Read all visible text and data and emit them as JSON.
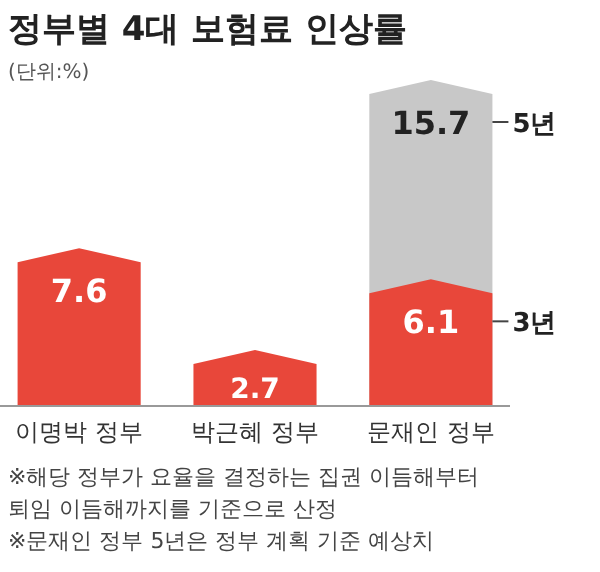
{
  "chart_data": {
    "type": "bar",
    "title": "정부별 4대 보험료 인상률",
    "subtitle": "(단위:%)",
    "categories": [
      "이명박 정부",
      "박근혜 정부",
      "문재인 정부"
    ],
    "series": [
      {
        "name": "5년",
        "color": "#c8c8c8",
        "values": [
          null,
          null,
          15.7
        ]
      },
      {
        "name": "3년",
        "color": "#e8473a",
        "values": [
          7.6,
          2.7,
          6.1
        ]
      }
    ],
    "data_labels": true,
    "legend": "right",
    "annotations": [
      "※해당 정부가 요율을 결정하는 집권 이듬해부터",
      "퇴임 이듬해까지를 기준으로 산정",
      "※문재인 정부 5년은 정부 계획 기준 예상치"
    ]
  }
}
